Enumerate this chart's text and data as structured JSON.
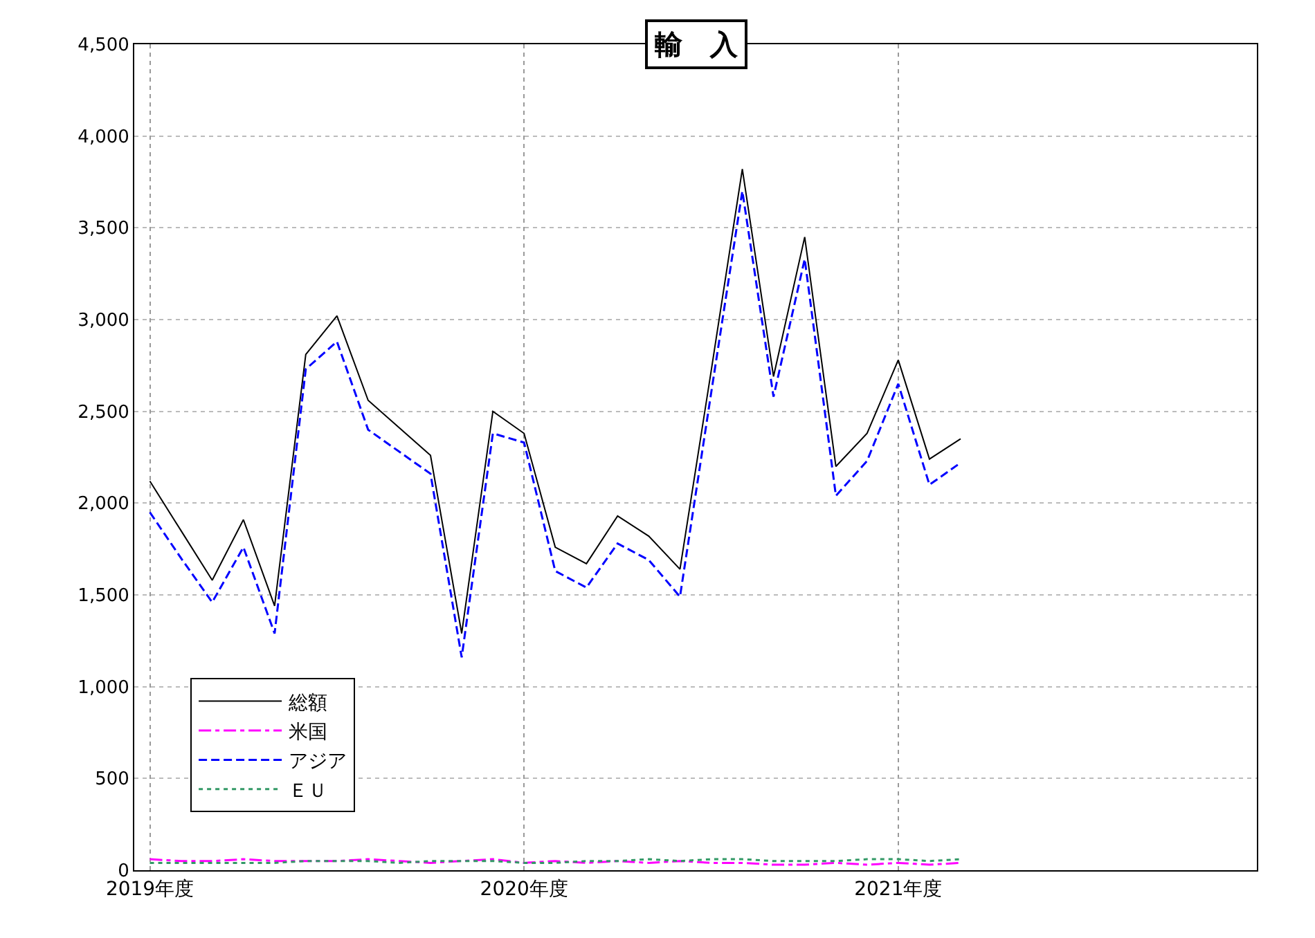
{
  "chart_data": {
    "type": "line",
    "title": "輸　入",
    "categories": [
      "2019年度",
      null,
      null,
      null,
      null,
      null,
      null,
      null,
      null,
      null,
      null,
      null,
      "2020年度",
      null,
      null,
      null,
      null,
      null,
      null,
      null,
      null,
      null,
      null,
      null,
      "2021年度",
      null,
      null,
      null,
      null,
      null,
      null,
      null,
      null,
      null,
      null,
      null
    ],
    "series": [
      {
        "name": "総額",
        "color": "#000000",
        "line_style": "solid",
        "values": [
          2120,
          1850,
          1580,
          1910,
          1440,
          2810,
          3020,
          2560,
          2410,
          2260,
          1290,
          2500,
          2380,
          1760,
          1670,
          1930,
          1820,
          1640,
          2720,
          3820,
          2690,
          3450,
          2200,
          2380,
          2780,
          2240,
          2350,
          null,
          null,
          null,
          null,
          null,
          null,
          null,
          null,
          null
        ]
      },
      {
        "name": "米国",
        "color": "#ff00ff",
        "line_style": "dashdot",
        "values": [
          60,
          50,
          50,
          60,
          50,
          50,
          50,
          60,
          50,
          40,
          50,
          60,
          40,
          50,
          40,
          50,
          40,
          50,
          40,
          40,
          30,
          30,
          40,
          30,
          40,
          30,
          40,
          null,
          null,
          null,
          null,
          null,
          null,
          null,
          null,
          null
        ]
      },
      {
        "name": "アジア",
        "color": "#0000ff",
        "line_style": "dashed",
        "values": [
          1950,
          1700,
          1460,
          1760,
          1290,
          2730,
          2880,
          2400,
          2280,
          2160,
          1160,
          2380,
          2330,
          1630,
          1540,
          1780,
          1690,
          1490,
          2600,
          3700,
          2580,
          3330,
          2040,
          2230,
          2650,
          2100,
          2220,
          null,
          null,
          null,
          null,
          null,
          null,
          null,
          null,
          null
        ]
      },
      {
        "name": "ＥＵ",
        "color": "#339966",
        "line_style": "dotted",
        "values": [
          40,
          40,
          40,
          40,
          40,
          50,
          50,
          50,
          40,
          50,
          50,
          50,
          40,
          40,
          50,
          50,
          60,
          50,
          60,
          60,
          50,
          50,
          50,
          60,
          60,
          50,
          60,
          null,
          null,
          null,
          null,
          null,
          null,
          null,
          null,
          null
        ]
      }
    ],
    "ylim": [
      0,
      4500
    ],
    "yticks": [
      {
        "value": 0,
        "label": "0"
      },
      {
        "value": 500,
        "label": "500"
      },
      {
        "value": 1000,
        "label": "1,000"
      },
      {
        "value": 1500,
        "label": "1,500"
      },
      {
        "value": 2000,
        "label": "2,000"
      },
      {
        "value": 2500,
        "label": "2,500"
      },
      {
        "value": 3000,
        "label": "3,000"
      },
      {
        "value": 3500,
        "label": "3,500"
      },
      {
        "value": 4000,
        "label": "4,000"
      },
      {
        "value": 4500,
        "label": "4,500"
      }
    ],
    "grid": true,
    "legend": "bottom left",
    "marker": "none"
  }
}
